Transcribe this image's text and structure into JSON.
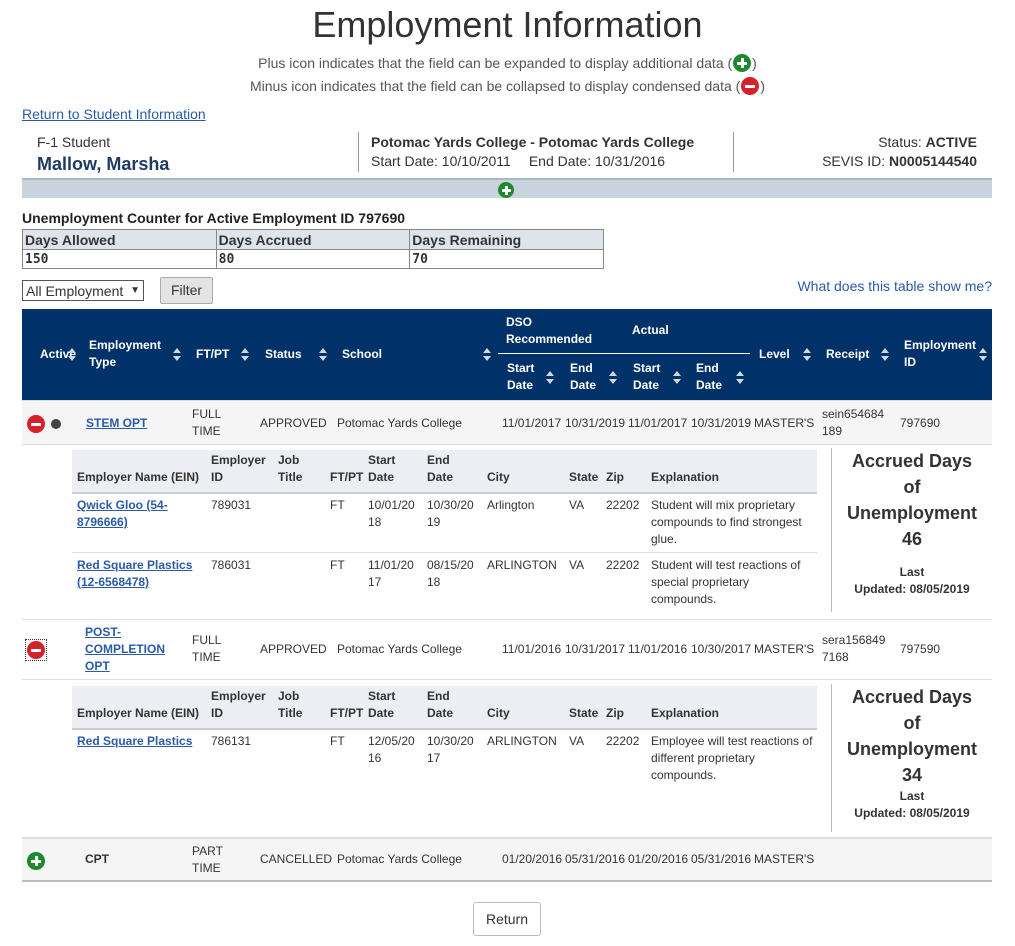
{
  "page": {
    "title": "Employment Information",
    "legend_plus": "Plus icon indicates that the field can be expanded to display additional data (",
    "legend_minus": "Minus icon indicates that the field can be collapsed to display condensed data (",
    "legend_close": ")",
    "return_link": "Return to Student Information"
  },
  "student": {
    "type": "F-1 Student",
    "name": "Mallow, Marsha",
    "school": "Potomac Yards College - Potomac Yards College",
    "start_date": "Start Date: 10/10/2011",
    "end_date": "End Date: 10/31/2016",
    "status_label": "Status: ",
    "status_value": "ACTIVE",
    "sevis_label": "SEVIS ID: ",
    "sevis_value": "N0005144540"
  },
  "counter": {
    "title": "Unemployment Counter for Active Employment ID 797690",
    "headers": [
      "Days Allowed",
      "Days Accrued",
      "Days Remaining"
    ],
    "values": [
      "150",
      "80",
      "70"
    ]
  },
  "filter": {
    "selected": "All Employment",
    "button": "Filter",
    "help_link": "What does this table show me?"
  },
  "grid": {
    "headers": {
      "active": "Active",
      "employment_type_1": "Employment",
      "employment_type_2": "Type",
      "ftpt": "FT/PT",
      "status": "Status",
      "school": "School",
      "dso_1": "DSO",
      "dso_2": "Recommended",
      "actual": "Actual",
      "start_1": "Start",
      "start_2": "Date",
      "end_1": "End",
      "end_2": "Date",
      "level": "Level",
      "receipt": "Receipt",
      "employment_id_1": "Employment",
      "employment_id_2": "ID"
    },
    "rows": [
      {
        "type": "STEM OPT",
        "ftpt_1": "FULL",
        "ftpt_2": "TIME",
        "status": "APPROVED",
        "school": "Potomac Yards College",
        "dso_start": "11/01/2017",
        "dso_end": "10/31/2019",
        "actual_start": "11/01/2017",
        "actual_end": "10/31/2019",
        "level": "MASTER'S",
        "receipt_1": "sein654684",
        "receipt_2": "189",
        "employment_id": "797690"
      },
      {
        "type_1": "POST-",
        "type_2": "COMPLETION",
        "type_3": "OPT",
        "ftpt_1": "FULL",
        "ftpt_2": "TIME",
        "status": "APPROVED",
        "school": "Potomac Yards College",
        "dso_start": "11/01/2016",
        "dso_end": "10/31/2017",
        "actual_start": "11/01/2016",
        "actual_end": "10/30/2017",
        "level": "MASTER'S",
        "receipt_1": "sera156849",
        "receipt_2": "7168",
        "employment_id": "797590"
      },
      {
        "type": "CPT",
        "ftpt_1": "PART",
        "ftpt_2": "TIME",
        "status": "CANCELLED",
        "school": "Potomac Yards College",
        "dso_start": "01/20/2016",
        "dso_end": "05/31/2016",
        "actual_start": "01/20/2016",
        "actual_end": "05/31/2016",
        "level": "MASTER'S"
      }
    ]
  },
  "sub": {
    "headers": {
      "employer_name": "Employer Name (EIN)",
      "employer_id_1": "Employer",
      "employer_id_2": "ID",
      "job_title_1": "Job",
      "job_title_2": "Title",
      "ftpt": "FT/PT",
      "start_1": "Start",
      "start_2": "Date",
      "end_1": "End",
      "end_2": "Date",
      "city": "City",
      "state": "State",
      "zip": "Zip",
      "explanation": "Explanation"
    },
    "stem": [
      {
        "name_1": "Qwick Gloo (54-",
        "name_2": "8796666)",
        "employer_id": "789031",
        "ftpt": "FT",
        "start_1": "10/01/20",
        "start_2": "18",
        "end_1": "10/30/20",
        "end_2": "19",
        "city": "Arlington",
        "state": "VA",
        "zip": "22202",
        "expl_1": "Student will mix proprietary",
        "expl_2": "compounds to find strongest",
        "expl_3": "glue."
      },
      {
        "name_1": "Red Square Plastics",
        "name_2": "(12-6568478)",
        "employer_id": "786031",
        "ftpt": "FT",
        "start_1": "11/01/20",
        "start_2": "17",
        "end_1": "08/15/20",
        "end_2": "18",
        "city": "ARLINGTON",
        "state": "VA",
        "zip": "22202",
        "expl_1": "Student will test reactions of",
        "expl_2": "special proprietary",
        "expl_3": "compounds."
      }
    ],
    "post": [
      {
        "name_1": "Red Square Plastics",
        "employer_id": "786131",
        "ftpt": "FT",
        "start_1": "12/05/20",
        "start_2": "16",
        "end_1": "10/30/20",
        "end_2": "17",
        "city": "ARLINGTON",
        "state": "VA",
        "zip": "22202",
        "expl_1": "Employee will test reactions of",
        "expl_2": "different proprietary",
        "expl_3": "compounds."
      }
    ]
  },
  "accrued": {
    "stem": {
      "line1": "Accrued Days",
      "line2": "of",
      "line3": "Unemployment",
      "days": "46",
      "last": "Last",
      "updated": "Updated: 08/05/2019"
    },
    "post": {
      "line1": "Accrued Days",
      "line2": "of",
      "line3": "Unemployment",
      "days": "34",
      "last": "Last",
      "updated": "Updated: 08/05/2019"
    }
  },
  "footer": {
    "return_button": "Return"
  },
  "colors": {
    "header_bg": "#003168",
    "link": "#2a5ba8",
    "plus": "#1e8a2e",
    "minus": "#d6202a"
  },
  "icons": {
    "expand": "plus-circle-icon",
    "collapse": "minus-circle-icon",
    "active": "active-dot-icon",
    "sort": "sort-arrows-icon"
  }
}
